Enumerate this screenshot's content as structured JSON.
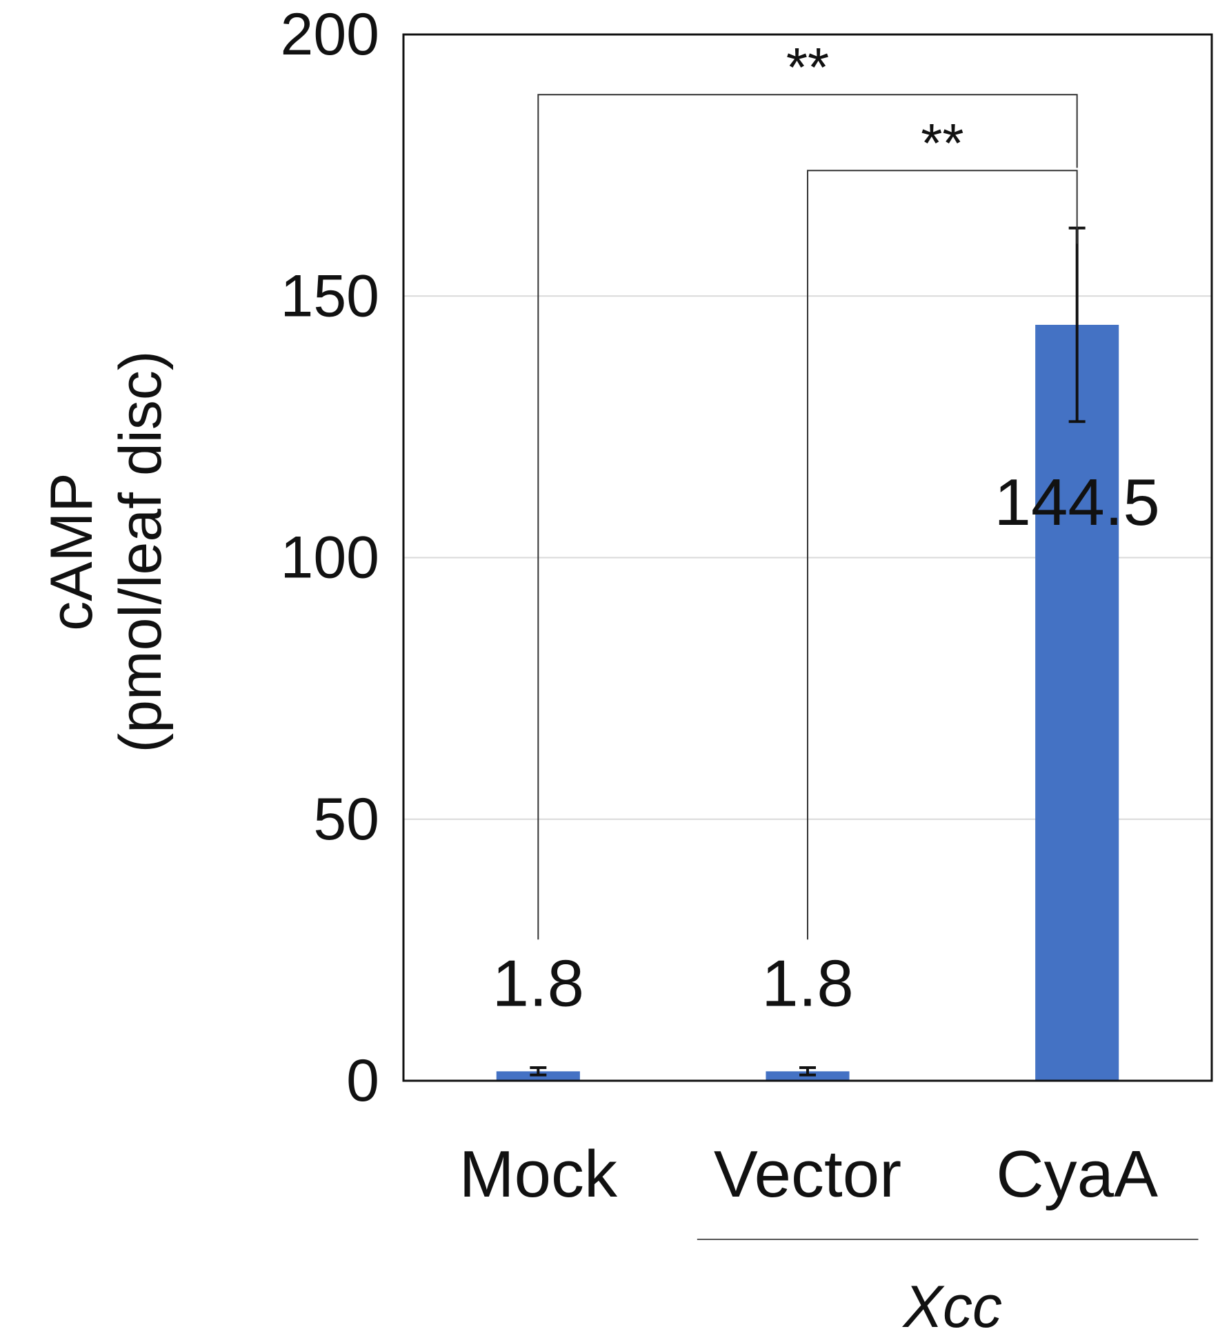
{
  "chart_data": {
    "type": "bar",
    "title": "",
    "ylabel": "cAMP",
    "ylabel_units": "(pmol/leaf disc)",
    "xlabel": "",
    "ylim": [
      0,
      200
    ],
    "yticks": [
      0,
      50,
      100,
      150,
      200
    ],
    "grid": true,
    "categories": [
      "Mock",
      "Vector",
      "CyaA"
    ],
    "values": [
      1.8,
      1.8,
      144.5
    ],
    "errors": [
      0.7,
      0.7,
      18.5
    ],
    "data_labels": [
      "1.8",
      "1.8",
      "144.5"
    ],
    "group_label": "Xcc",
    "group_categories": [
      "Vector",
      "CyaA"
    ],
    "significance": [
      {
        "from": "Mock",
        "to": "CyaA",
        "label": "**",
        "level": 188.5
      },
      {
        "from": "Vector",
        "to": "CyaA",
        "label": "**",
        "level": 174
      }
    ],
    "colors": {
      "bar": "#4472c4",
      "grid": "#d9d9d9",
      "axis": "#111111"
    }
  }
}
